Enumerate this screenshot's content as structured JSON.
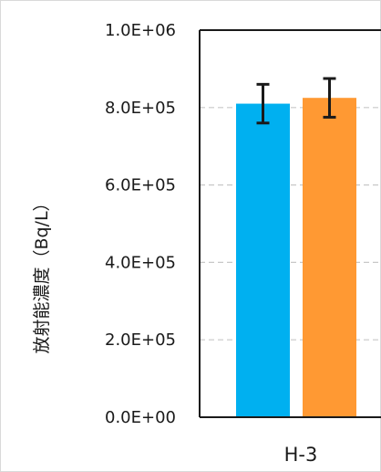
{
  "chart_data": {
    "type": "bar",
    "title": "",
    "ylabel": "放射能濃度（Bq/L）",
    "xlabel": "",
    "categories": [
      "H-3"
    ],
    "ylim": [
      0,
      1000000
    ],
    "yticks": [
      "0.0E+00",
      "2.0E+05",
      "4.0E+05",
      "6.0E+05",
      "8.0E+05",
      "1.0E+06"
    ],
    "grid": true,
    "series": [
      {
        "color": "#00B0F0",
        "values": [
          810000
        ],
        "error": [
          50000
        ]
      },
      {
        "color": "#FF9933",
        "values": [
          825000
        ],
        "error": [
          50000
        ]
      }
    ]
  }
}
